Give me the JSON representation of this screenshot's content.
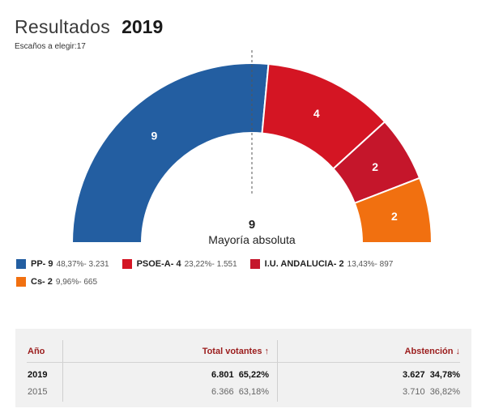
{
  "header": {
    "title": "Resultados",
    "year": "2019",
    "subtitle": "Escaños a elegir:17"
  },
  "colors": {
    "PP": "#235ea1",
    "PSOE-A": "#d41523",
    "I.U. ANDALUCIA": "#c5162b",
    "Cs": "#f17010",
    "accent": "#9b1c1c"
  },
  "chart_data": {
    "type": "pie",
    "subtype": "hemicycle",
    "total_seats": 17,
    "series": [
      {
        "name": "PP",
        "seats": 9,
        "percent": 48.37,
        "votes": 3231,
        "color": "#235ea1"
      },
      {
        "name": "PSOE-A",
        "seats": 4,
        "percent": 23.22,
        "votes": 1551,
        "color": "#d41523"
      },
      {
        "name": "I.U. ANDALUCIA",
        "seats": 2,
        "percent": 13.43,
        "votes": 897,
        "color": "#c5162b"
      },
      {
        "name": "Cs",
        "seats": 2,
        "percent": 9.96,
        "votes": 665,
        "color": "#f17010"
      }
    ],
    "majority": {
      "value": "9",
      "label": "Mayoría absoluta"
    }
  },
  "legend": [
    {
      "label": "PP- 9",
      "stats": "48,37%- 3.231"
    },
    {
      "label": "PSOE-A- 4",
      "stats": "23,22%- 1.551"
    },
    {
      "label": "I.U. ANDALUCIA- 2",
      "stats": "13,43%- 897"
    },
    {
      "label": "Cs- 2",
      "stats": "9,96%- 665"
    }
  ],
  "table": {
    "col_year": "Año",
    "col_total": "Total votantes ↑",
    "col_abst": "Abstención ↓",
    "rows": [
      {
        "year": "2019",
        "total": "6.801",
        "total_pct": "65,22%",
        "abst": "3.627",
        "abst_pct": "34,78%"
      },
      {
        "year": "2015",
        "total": "6.366",
        "total_pct": "63,18%",
        "abst": "3.710",
        "abst_pct": "36,82%"
      }
    ]
  }
}
